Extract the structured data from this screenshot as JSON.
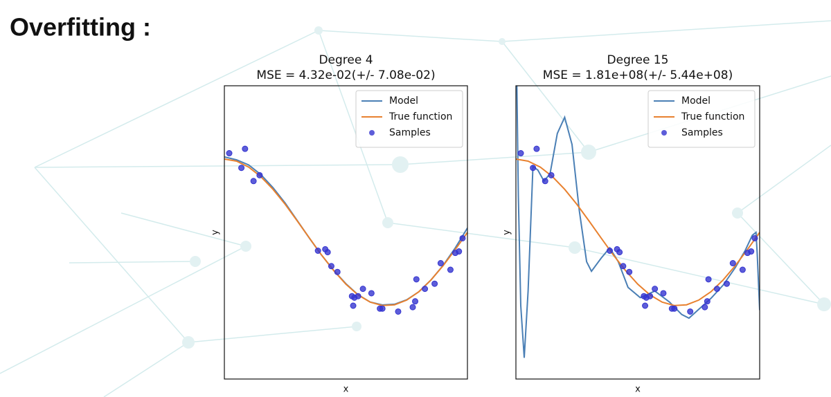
{
  "title": "Overfitting :",
  "chart_data": [
    {
      "type": "line",
      "title": "Degree 4",
      "subtitle": "MSE = 4.32e-02(+/- 7.08e-02)",
      "xlabel": "x",
      "ylabel": "y",
      "xlim": [
        0,
        1
      ],
      "ylim": [
        -2,
        2
      ],
      "legend": "upper right",
      "series": [
        {
          "name": "Model",
          "kind": "line",
          "color": "#4a7fb5",
          "x": [
            0,
            0.05,
            0.1,
            0.15,
            0.2,
            0.25,
            0.3,
            0.35,
            0.4,
            0.45,
            0.5,
            0.55,
            0.6,
            0.65,
            0.7,
            0.75,
            0.8,
            0.85,
            0.9,
            0.95,
            1
          ],
          "values": [
            1.03,
            0.99,
            0.92,
            0.79,
            0.61,
            0.4,
            0.16,
            -0.08,
            -0.31,
            -0.52,
            -0.7,
            -0.85,
            -0.95,
            -0.99,
            -0.98,
            -0.92,
            -0.81,
            -0.65,
            -0.45,
            -0.21,
            0.06
          ]
        },
        {
          "name": "True function",
          "kind": "line",
          "color": "#e8812f",
          "x": [
            0,
            0.05,
            0.1,
            0.15,
            0.2,
            0.25,
            0.3,
            0.35,
            0.4,
            0.45,
            0.5,
            0.55,
            0.6,
            0.65,
            0.7,
            0.75,
            0.8,
            0.85,
            0.9,
            0.95,
            1
          ],
          "values": [
            1,
            0.972,
            0.891,
            0.76,
            0.588,
            0.383,
            0.156,
            -0.078,
            -0.309,
            -0.522,
            -0.707,
            -0.853,
            -0.951,
            -0.997,
            -0.988,
            -0.924,
            -0.809,
            -0.649,
            -0.454,
            -0.233,
            0
          ]
        },
        {
          "name": "Samples",
          "kind": "scatter",
          "color": "#3535d0",
          "x": [
            0.02,
            0.085,
            0.07,
            0.12,
            0.145,
            0.385,
            0.415,
            0.425,
            0.44,
            0.465,
            0.525,
            0.535,
            0.55,
            0.53,
            0.57,
            0.605,
            0.64,
            0.65,
            0.715,
            0.775,
            0.785,
            0.79,
            0.825,
            0.865,
            0.89,
            0.93,
            0.95,
            0.965,
            0.98
          ],
          "values": [
            1.08,
            1.14,
            0.88,
            0.7,
            0.78,
            -0.25,
            -0.23,
            -0.27,
            -0.46,
            -0.54,
            -0.87,
            -0.89,
            -0.87,
            -1.0,
            -0.77,
            -0.83,
            -1.04,
            -1.04,
            -1.08,
            -1.02,
            -0.94,
            -0.64,
            -0.77,
            -0.7,
            -0.42,
            -0.51,
            -0.28,
            -0.26,
            -0.08
          ]
        }
      ]
    },
    {
      "type": "line",
      "title": "Degree 15",
      "subtitle": "MSE = 1.81e+08(+/- 5.44e+08)",
      "xlabel": "x",
      "ylabel": "y",
      "xlim": [
        0,
        1
      ],
      "ylim": [
        -2,
        2
      ],
      "legend": "upper right",
      "series": [
        {
          "name": "Model",
          "kind": "line",
          "color": "#4a7fb5",
          "x": [
            0,
            0.01,
            0.02,
            0.034,
            0.05,
            0.07,
            0.09,
            0.115,
            0.14,
            0.17,
            0.2,
            0.23,
            0.26,
            0.29,
            0.31,
            0.35,
            0.385,
            0.42,
            0.46,
            0.51,
            0.57,
            0.63,
            0.68,
            0.71,
            0.75,
            0.8,
            0.85,
            0.9,
            0.94,
            0.97,
            0.985,
            0.99,
            1
          ],
          "values": [
            3.0,
            0.5,
            -1.0,
            -1.71,
            -0.8,
            0.9,
            0.85,
            0.7,
            0.8,
            1.35,
            1.57,
            1.2,
            0.3,
            -0.4,
            -0.53,
            -0.35,
            -0.21,
            -0.4,
            -0.75,
            -0.89,
            -0.8,
            -0.95,
            -1.12,
            -1.17,
            -1.05,
            -0.9,
            -0.72,
            -0.48,
            -0.25,
            -0.04,
            0.0,
            -0.3,
            -1.06
          ]
        },
        {
          "name": "True function",
          "kind": "line",
          "color": "#e8812f",
          "x": [
            0,
            0.05,
            0.1,
            0.15,
            0.2,
            0.25,
            0.3,
            0.35,
            0.4,
            0.45,
            0.5,
            0.55,
            0.6,
            0.65,
            0.7,
            0.75,
            0.8,
            0.85,
            0.9,
            0.95,
            1
          ],
          "values": [
            1,
            0.972,
            0.891,
            0.76,
            0.588,
            0.383,
            0.156,
            -0.078,
            -0.309,
            -0.522,
            -0.707,
            -0.853,
            -0.951,
            -0.997,
            -0.988,
            -0.924,
            -0.809,
            -0.649,
            -0.454,
            -0.233,
            0
          ]
        },
        {
          "name": "Samples",
          "kind": "scatter",
          "color": "#3535d0",
          "x": [
            0.02,
            0.085,
            0.07,
            0.12,
            0.145,
            0.385,
            0.415,
            0.425,
            0.44,
            0.465,
            0.525,
            0.535,
            0.55,
            0.53,
            0.57,
            0.605,
            0.64,
            0.65,
            0.715,
            0.775,
            0.785,
            0.79,
            0.825,
            0.865,
            0.89,
            0.93,
            0.95,
            0.965,
            0.98
          ],
          "values": [
            1.08,
            1.14,
            0.88,
            0.7,
            0.78,
            -0.25,
            -0.23,
            -0.27,
            -0.46,
            -0.54,
            -0.87,
            -0.89,
            -0.87,
            -1.0,
            -0.77,
            -0.83,
            -1.04,
            -1.04,
            -1.08,
            -1.02,
            -0.94,
            -0.64,
            -0.77,
            -0.7,
            -0.42,
            -0.51,
            -0.28,
            -0.26,
            -0.08
          ]
        }
      ]
    }
  ]
}
